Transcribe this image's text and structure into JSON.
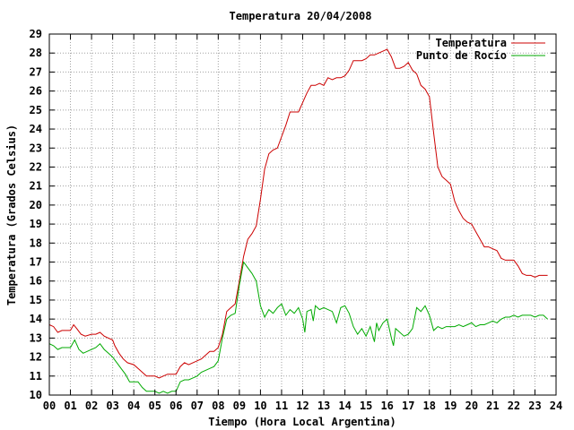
{
  "chart_data": {
    "type": "line",
    "title": "Temperatura 20/04/2008",
    "xlabel": "Tiempo (Hora Local Argentina)",
    "ylabel": "Temperatura (Grados Celsius)",
    "xlim": [
      0,
      24
    ],
    "ylim": [
      10,
      29
    ],
    "x_ticks": [
      0,
      1,
      2,
      3,
      4,
      5,
      6,
      7,
      8,
      9,
      10,
      11,
      12,
      13,
      14,
      15,
      16,
      17,
      18,
      19,
      20,
      21,
      22,
      23,
      24
    ],
    "x_tick_labels": [
      "00",
      "01",
      "02",
      "03",
      "04",
      "05",
      "06",
      "07",
      "08",
      "09",
      "10",
      "11",
      "12",
      "13",
      "14",
      "15",
      "16",
      "17",
      "18",
      "19",
      "20",
      "21",
      "22",
      "23",
      "24"
    ],
    "y_ticks": [
      10,
      11,
      12,
      13,
      14,
      15,
      16,
      17,
      18,
      19,
      20,
      21,
      22,
      23,
      24,
      25,
      26,
      27,
      28,
      29
    ],
    "grid": true,
    "legend_position": "top-right",
    "series": [
      {
        "name": "Temperatura",
        "color": "#cc0000",
        "points": [
          [
            0.0,
            13.7
          ],
          [
            0.2,
            13.6
          ],
          [
            0.4,
            13.3
          ],
          [
            0.6,
            13.4
          ],
          [
            0.8,
            13.4
          ],
          [
            1.0,
            13.4
          ],
          [
            1.15,
            13.7
          ],
          [
            1.3,
            13.5
          ],
          [
            1.5,
            13.2
          ],
          [
            1.7,
            13.1
          ],
          [
            2.0,
            13.2
          ],
          [
            2.2,
            13.2
          ],
          [
            2.4,
            13.3
          ],
          [
            2.6,
            13.1
          ],
          [
            2.8,
            13.0
          ],
          [
            3.0,
            12.9
          ],
          [
            3.1,
            12.6
          ],
          [
            3.3,
            12.2
          ],
          [
            3.5,
            11.9
          ],
          [
            3.7,
            11.7
          ],
          [
            4.0,
            11.6
          ],
          [
            4.2,
            11.4
          ],
          [
            4.4,
            11.2
          ],
          [
            4.6,
            11.0
          ],
          [
            4.8,
            11.0
          ],
          [
            5.0,
            11.0
          ],
          [
            5.2,
            10.9
          ],
          [
            5.4,
            11.0
          ],
          [
            5.6,
            11.1
          ],
          [
            5.8,
            11.1
          ],
          [
            6.0,
            11.1
          ],
          [
            6.2,
            11.5
          ],
          [
            6.4,
            11.7
          ],
          [
            6.6,
            11.6
          ],
          [
            6.8,
            11.7
          ],
          [
            7.0,
            11.8
          ],
          [
            7.2,
            11.9
          ],
          [
            7.4,
            12.1
          ],
          [
            7.6,
            12.3
          ],
          [
            7.8,
            12.3
          ],
          [
            8.0,
            12.5
          ],
          [
            8.2,
            13.2
          ],
          [
            8.4,
            14.4
          ],
          [
            8.6,
            14.6
          ],
          [
            8.8,
            14.8
          ],
          [
            9.0,
            16.0
          ],
          [
            9.2,
            17.3
          ],
          [
            9.4,
            18.2
          ],
          [
            9.6,
            18.5
          ],
          [
            9.8,
            18.9
          ],
          [
            10.0,
            20.3
          ],
          [
            10.2,
            21.9
          ],
          [
            10.4,
            22.7
          ],
          [
            10.6,
            22.9
          ],
          [
            10.8,
            23.0
          ],
          [
            11.0,
            23.6
          ],
          [
            11.2,
            24.2
          ],
          [
            11.4,
            24.9
          ],
          [
            11.6,
            24.9
          ],
          [
            11.8,
            24.9
          ],
          [
            12.0,
            25.4
          ],
          [
            12.2,
            25.9
          ],
          [
            12.4,
            26.3
          ],
          [
            12.6,
            26.3
          ],
          [
            12.8,
            26.4
          ],
          [
            13.0,
            26.3
          ],
          [
            13.2,
            26.7
          ],
          [
            13.4,
            26.6
          ],
          [
            13.6,
            26.7
          ],
          [
            13.8,
            26.7
          ],
          [
            14.0,
            26.8
          ],
          [
            14.2,
            27.1
          ],
          [
            14.4,
            27.6
          ],
          [
            14.6,
            27.6
          ],
          [
            14.8,
            27.6
          ],
          [
            15.0,
            27.7
          ],
          [
            15.2,
            27.9
          ],
          [
            15.4,
            27.9
          ],
          [
            15.6,
            28.0
          ],
          [
            15.8,
            28.1
          ],
          [
            16.0,
            28.2
          ],
          [
            16.2,
            27.8
          ],
          [
            16.4,
            27.2
          ],
          [
            16.6,
            27.2
          ],
          [
            16.8,
            27.3
          ],
          [
            17.0,
            27.5
          ],
          [
            17.2,
            27.1
          ],
          [
            17.4,
            26.9
          ],
          [
            17.6,
            26.3
          ],
          [
            17.8,
            26.1
          ],
          [
            18.0,
            25.7
          ],
          [
            18.2,
            23.8
          ],
          [
            18.4,
            22.0
          ],
          [
            18.6,
            21.5
          ],
          [
            18.8,
            21.3
          ],
          [
            19.0,
            21.1
          ],
          [
            19.2,
            20.2
          ],
          [
            19.4,
            19.7
          ],
          [
            19.6,
            19.3
          ],
          [
            19.8,
            19.1
          ],
          [
            20.0,
            19.0
          ],
          [
            20.2,
            18.6
          ],
          [
            20.4,
            18.2
          ],
          [
            20.6,
            17.8
          ],
          [
            20.8,
            17.8
          ],
          [
            21.0,
            17.7
          ],
          [
            21.2,
            17.6
          ],
          [
            21.4,
            17.2
          ],
          [
            21.6,
            17.1
          ],
          [
            21.8,
            17.1
          ],
          [
            22.0,
            17.1
          ],
          [
            22.2,
            16.8
          ],
          [
            22.4,
            16.4
          ],
          [
            22.6,
            16.3
          ],
          [
            22.8,
            16.3
          ],
          [
            23.0,
            16.2
          ],
          [
            23.2,
            16.3
          ],
          [
            23.4,
            16.3
          ],
          [
            23.6,
            16.3
          ]
        ]
      },
      {
        "name": "Punto de Rocío",
        "color": "#00aa00",
        "points": [
          [
            0.0,
            12.7
          ],
          [
            0.2,
            12.6
          ],
          [
            0.4,
            12.4
          ],
          [
            0.6,
            12.5
          ],
          [
            0.8,
            12.5
          ],
          [
            1.0,
            12.5
          ],
          [
            1.2,
            12.9
          ],
          [
            1.4,
            12.4
          ],
          [
            1.6,
            12.2
          ],
          [
            1.8,
            12.3
          ],
          [
            2.0,
            12.4
          ],
          [
            2.2,
            12.5
          ],
          [
            2.4,
            12.7
          ],
          [
            2.6,
            12.4
          ],
          [
            2.8,
            12.2
          ],
          [
            3.0,
            12.0
          ],
          [
            3.2,
            11.7
          ],
          [
            3.4,
            11.4
          ],
          [
            3.6,
            11.1
          ],
          [
            3.8,
            10.7
          ],
          [
            4.0,
            10.7
          ],
          [
            4.2,
            10.7
          ],
          [
            4.4,
            10.4
          ],
          [
            4.6,
            10.2
          ],
          [
            4.8,
            10.2
          ],
          [
            5.0,
            10.2
          ],
          [
            5.2,
            10.1
          ],
          [
            5.4,
            10.2
          ],
          [
            5.6,
            10.1
          ],
          [
            5.8,
            10.2
          ],
          [
            6.0,
            10.2
          ],
          [
            6.2,
            10.7
          ],
          [
            6.4,
            10.8
          ],
          [
            6.6,
            10.8
          ],
          [
            6.8,
            10.9
          ],
          [
            7.0,
            11.0
          ],
          [
            7.2,
            11.2
          ],
          [
            7.4,
            11.3
          ],
          [
            7.6,
            11.4
          ],
          [
            7.8,
            11.5
          ],
          [
            8.0,
            11.8
          ],
          [
            8.2,
            13.0
          ],
          [
            8.4,
            14.0
          ],
          [
            8.6,
            14.2
          ],
          [
            8.8,
            14.3
          ],
          [
            9.0,
            15.8
          ],
          [
            9.2,
            17.0
          ],
          [
            9.4,
            16.7
          ],
          [
            9.6,
            16.4
          ],
          [
            9.8,
            16.0
          ],
          [
            10.0,
            14.7
          ],
          [
            10.2,
            14.1
          ],
          [
            10.4,
            14.5
          ],
          [
            10.6,
            14.3
          ],
          [
            10.8,
            14.6
          ],
          [
            11.0,
            14.8
          ],
          [
            11.2,
            14.2
          ],
          [
            11.4,
            14.5
          ],
          [
            11.6,
            14.3
          ],
          [
            11.8,
            14.6
          ],
          [
            12.0,
            14.0
          ],
          [
            12.1,
            13.3
          ],
          [
            12.2,
            14.4
          ],
          [
            12.4,
            14.5
          ],
          [
            12.5,
            13.9
          ],
          [
            12.6,
            14.7
          ],
          [
            12.8,
            14.5
          ],
          [
            13.0,
            14.6
          ],
          [
            13.2,
            14.5
          ],
          [
            13.4,
            14.4
          ],
          [
            13.6,
            13.8
          ],
          [
            13.8,
            14.6
          ],
          [
            14.0,
            14.7
          ],
          [
            14.2,
            14.3
          ],
          [
            14.4,
            13.6
          ],
          [
            14.6,
            13.2
          ],
          [
            14.8,
            13.5
          ],
          [
            15.0,
            13.1
          ],
          [
            15.2,
            13.6
          ],
          [
            15.4,
            12.8
          ],
          [
            15.5,
            13.8
          ],
          [
            15.6,
            13.4
          ],
          [
            15.8,
            13.8
          ],
          [
            16.0,
            14.0
          ],
          [
            16.2,
            13.0
          ],
          [
            16.3,
            12.6
          ],
          [
            16.4,
            13.5
          ],
          [
            16.6,
            13.3
          ],
          [
            16.8,
            13.1
          ],
          [
            17.0,
            13.2
          ],
          [
            17.2,
            13.5
          ],
          [
            17.4,
            14.6
          ],
          [
            17.6,
            14.4
          ],
          [
            17.8,
            14.7
          ],
          [
            18.0,
            14.2
          ],
          [
            18.2,
            13.4
          ],
          [
            18.4,
            13.6
          ],
          [
            18.6,
            13.5
          ],
          [
            18.8,
            13.6
          ],
          [
            19.0,
            13.6
          ],
          [
            19.2,
            13.6
          ],
          [
            19.4,
            13.7
          ],
          [
            19.6,
            13.6
          ],
          [
            19.8,
            13.7
          ],
          [
            20.0,
            13.8
          ],
          [
            20.2,
            13.6
          ],
          [
            20.4,
            13.7
          ],
          [
            20.6,
            13.7
          ],
          [
            20.8,
            13.8
          ],
          [
            21.0,
            13.9
          ],
          [
            21.2,
            13.8
          ],
          [
            21.4,
            14.0
          ],
          [
            21.6,
            14.1
          ],
          [
            21.8,
            14.1
          ],
          [
            22.0,
            14.2
          ],
          [
            22.2,
            14.1
          ],
          [
            22.4,
            14.2
          ],
          [
            22.6,
            14.2
          ],
          [
            22.8,
            14.2
          ],
          [
            23.0,
            14.1
          ],
          [
            23.2,
            14.2
          ],
          [
            23.4,
            14.2
          ],
          [
            23.6,
            14.0
          ]
        ]
      }
    ]
  }
}
